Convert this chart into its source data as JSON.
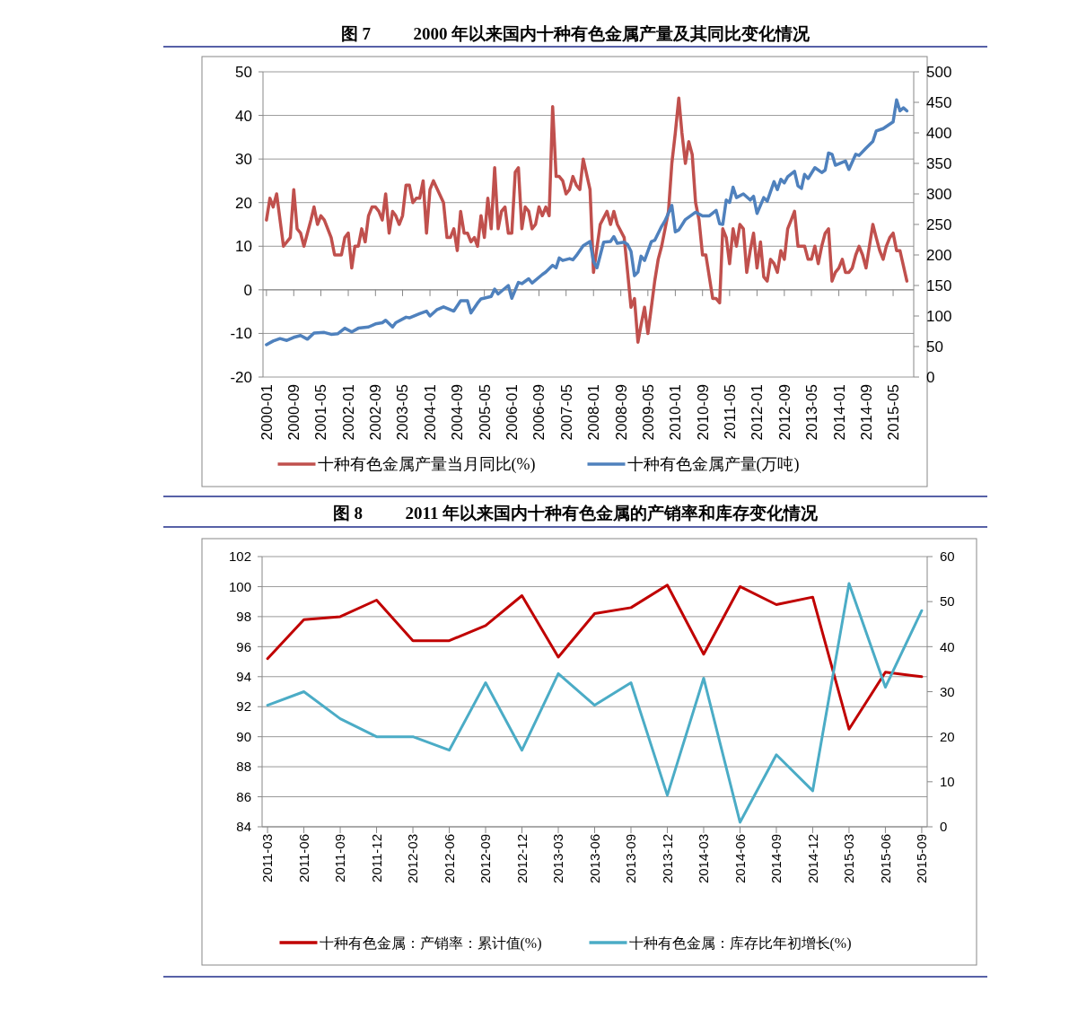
{
  "chart_data": [
    {
      "type": "line",
      "title": "图 7          2000 年以来国内十种有色金属产量及其同比变化情况",
      "xlim": [
        "1999-12",
        "2015-11"
      ],
      "xticks": [
        "2000-01",
        "2000-09",
        "2001-05",
        "2002-01",
        "2002-09",
        "2003-05",
        "2004-01",
        "2004-09",
        "2005-05",
        "2006-01",
        "2006-09",
        "2007-05",
        "2008-01",
        "2008-09",
        "2009-05",
        "2010-01",
        "2010-09",
        "2011-05",
        "2012-01",
        "2012-09",
        "2013-05",
        "2014-01",
        "2014-09",
        "2015-05"
      ],
      "ylim": [
        -20,
        50
      ],
      "yticks": [
        -20,
        -10,
        0,
        10,
        20,
        30,
        40,
        50
      ],
      "y2lim": [
        0,
        500
      ],
      "y2ticks": [
        0,
        50,
        100,
        150,
        200,
        250,
        300,
        350,
        400,
        450,
        500
      ],
      "grid": "y",
      "legend": "bottom",
      "series": [
        {
          "name": "十种有色金属产量当月同比(%)",
          "color": "#c0504d",
          "x": [
            "2000-01",
            "2000-02",
            "2000-03",
            "2000-04",
            "2000-06",
            "2000-08",
            "2000-09",
            "2000-10",
            "2000-11",
            "2000-12",
            "2001-02",
            "2001-03",
            "2001-04",
            "2001-05",
            "2001-06",
            "2001-08",
            "2001-09",
            "2001-10",
            "2001-11",
            "2001-12",
            "2002-01",
            "2002-02",
            "2002-03",
            "2002-04",
            "2002-05",
            "2002-06",
            "2002-07",
            "2002-08",
            "2002-09",
            "2002-10",
            "2002-11",
            "2002-12",
            "2003-01",
            "2003-02",
            "2003-03",
            "2003-04",
            "2003-05",
            "2003-06",
            "2003-07",
            "2003-08",
            "2003-09",
            "2003-10",
            "2003-11",
            "2003-12",
            "2004-01",
            "2004-02",
            "2004-05",
            "2004-06",
            "2004-07",
            "2004-08",
            "2004-09",
            "2004-10",
            "2004-11",
            "2004-12",
            "2005-01",
            "2005-02",
            "2005-03",
            "2005-04",
            "2005-05",
            "2005-06",
            "2005-07",
            "2005-08",
            "2005-09",
            "2005-10",
            "2005-11",
            "2005-12",
            "2006-01",
            "2006-02",
            "2006-03",
            "2006-04",
            "2006-05",
            "2006-06",
            "2006-07",
            "2006-08",
            "2006-09",
            "2006-10",
            "2006-11",
            "2006-12",
            "2007-01",
            "2007-02",
            "2007-03",
            "2007-04",
            "2007-05",
            "2007-06",
            "2007-07",
            "2007-08",
            "2007-09",
            "2007-10",
            "2007-12",
            "2008-01",
            "2008-03",
            "2008-05",
            "2008-06",
            "2008-07",
            "2008-08",
            "2008-10",
            "2008-11",
            "2008-12",
            "2009-01",
            "2009-02",
            "2009-03",
            "2009-04",
            "2009-05",
            "2009-06",
            "2009-07",
            "2009-08",
            "2009-09",
            "2009-11",
            "2009-12",
            "2010-01",
            "2010-02",
            "2010-03",
            "2010-04",
            "2010-05",
            "2010-06",
            "2010-07",
            "2010-08",
            "2010-09",
            "2010-10",
            "2010-12",
            "2011-01",
            "2011-02",
            "2011-03",
            "2011-04",
            "2011-05",
            "2011-06",
            "2011-07",
            "2011-08",
            "2011-09",
            "2011-10",
            "2011-11",
            "2011-12",
            "2012-01",
            "2012-02",
            "2012-03",
            "2012-04",
            "2012-05",
            "2012-06",
            "2012-07",
            "2012-08",
            "2012-09",
            "2012-10",
            "2012-11",
            "2012-12",
            "2013-01",
            "2013-02",
            "2013-03",
            "2013-04",
            "2013-05",
            "2013-06",
            "2013-07",
            "2013-08",
            "2013-09",
            "2013-10",
            "2013-11",
            "2013-12",
            "2014-01",
            "2014-02",
            "2014-03",
            "2014-04",
            "2014-05",
            "2014-06",
            "2014-07",
            "2014-08",
            "2014-09",
            "2014-10",
            "2014-11",
            "2014-12",
            "2015-01",
            "2015-02",
            "2015-03",
            "2015-04",
            "2015-05",
            "2015-06",
            "2015-07",
            "2015-09"
          ],
          "values": [
            16,
            21,
            19,
            22,
            10,
            12,
            23,
            14,
            13,
            10,
            16,
            19,
            15,
            17,
            16,
            12,
            8,
            8,
            8,
            12,
            13,
            5,
            10,
            10,
            14,
            11,
            17,
            19,
            19,
            18,
            16,
            22,
            13,
            18,
            17,
            15,
            17,
            24,
            24,
            20,
            21,
            21,
            25,
            13,
            23,
            25,
            20,
            12,
            12,
            14,
            9,
            18,
            13,
            13,
            11,
            12,
            10,
            17,
            12,
            21,
            14,
            28,
            14,
            18,
            19,
            13,
            13,
            27,
            28,
            14,
            19,
            18,
            14,
            15,
            19,
            17,
            19,
            17,
            42,
            26,
            26,
            25,
            22,
            23,
            26,
            24,
            23,
            30,
            23,
            4,
            15,
            18,
            15,
            18,
            15,
            12,
            4,
            -4,
            -2,
            -12,
            -8,
            -4,
            -10,
            -4,
            2,
            7,
            10,
            18,
            29,
            36,
            44,
            36,
            29,
            34,
            31,
            20,
            16,
            8,
            8,
            -2,
            -2,
            -3,
            14,
            12,
            6,
            14,
            10,
            15,
            14,
            4,
            9,
            13,
            5,
            11,
            3,
            2,
            7,
            6,
            4,
            9,
            7,
            14,
            16,
            18,
            10,
            10,
            10,
            7,
            7,
            10,
            6,
            10,
            13,
            14,
            2,
            4,
            5,
            7,
            4,
            4,
            5,
            8,
            10,
            8,
            5,
            10,
            15,
            12,
            9,
            7,
            10,
            12,
            13,
            9,
            9,
            2
          ]
        },
        {
          "name": "十种有色金属产量(万吨)",
          "color": "#4f81bd",
          "axis": "y2",
          "x": [
            "2000-01",
            "2000-03",
            "2000-05",
            "2000-07",
            "2000-09",
            "2000-11",
            "2001-01",
            "2001-03",
            "2001-06",
            "2001-08",
            "2001-10",
            "2001-12",
            "2002-02",
            "2002-04",
            "2002-07",
            "2002-09",
            "2002-11",
            "2002-12",
            "2003-02",
            "2003-03",
            "2003-06",
            "2003-07",
            "2003-10",
            "2003-12",
            "2004-01",
            "2004-03",
            "2004-05",
            "2004-08",
            "2004-10",
            "2004-12",
            "2005-01",
            "2005-03",
            "2005-04",
            "2005-07",
            "2005-08",
            "2005-09",
            "2005-12",
            "2006-01",
            "2006-03",
            "2006-04",
            "2006-06",
            "2006-07",
            "2006-10",
            "2006-11",
            "2007-01",
            "2007-02",
            "2007-03",
            "2007-04",
            "2007-06",
            "2007-07",
            "2007-08",
            "2007-10",
            "2007-12",
            "2008-01",
            "2008-02",
            "2008-04",
            "2008-06",
            "2008-07",
            "2008-08",
            "2008-10",
            "2008-11",
            "2008-12",
            "2009-01",
            "2009-02",
            "2009-03",
            "2009-04",
            "2009-06",
            "2009-07",
            "2009-09",
            "2009-10",
            "2009-12",
            "2010-01",
            "2010-02",
            "2010-04",
            "2010-07",
            "2010-09",
            "2010-11",
            "2011-01",
            "2011-02",
            "2011-03",
            "2011-04",
            "2011-05",
            "2011-06",
            "2011-07",
            "2011-09",
            "2011-11",
            "2011-12",
            "2012-01",
            "2012-03",
            "2012-04",
            "2012-06",
            "2012-07",
            "2012-08",
            "2012-09",
            "2012-10",
            "2012-12",
            "2013-01",
            "2013-02",
            "2013-03",
            "2013-04",
            "2013-06",
            "2013-08",
            "2013-09",
            "2013-10",
            "2013-11",
            "2013-12",
            "2014-03",
            "2014-04",
            "2014-06",
            "2014-07",
            "2014-09",
            "2014-11",
            "2014-12",
            "2015-02",
            "2015-05",
            "2015-06",
            "2015-07",
            "2015-08",
            "2015-09"
          ],
          "values": [
            53,
            59,
            63,
            60,
            65,
            68,
            62,
            72,
            73,
            70,
            71,
            80,
            74,
            80,
            82,
            87,
            89,
            93,
            82,
            89,
            98,
            97,
            104,
            108,
            100,
            110,
            115,
            108,
            125,
            125,
            105,
            121,
            128,
            132,
            144,
            136,
            150,
            129,
            155,
            153,
            161,
            154,
            168,
            172,
            183,
            179,
            195,
            191,
            194,
            192,
            199,
            215,
            222,
            189,
            179,
            221,
            222,
            230,
            219,
            221,
            217,
            206,
            166,
            172,
            198,
            191,
            222,
            224,
            247,
            256,
            281,
            238,
            241,
            258,
            270,
            264,
            264,
            273,
            251,
            250,
            290,
            286,
            311,
            294,
            300,
            290,
            296,
            268,
            294,
            288,
            320,
            307,
            324,
            318,
            328,
            337,
            313,
            309,
            332,
            325,
            343,
            335,
            339,
            367,
            365,
            347,
            354,
            340,
            365,
            363,
            375,
            386,
            403,
            407,
            418,
            454,
            436,
            441,
            436
          ]
        }
      ]
    },
    {
      "type": "line",
      "title": "图 8          2011 年以来国内十种有色金属的产销率和库存变化情况",
      "categories": [
        "2011-03",
        "2011-06",
        "2011-09",
        "2011-12",
        "2012-03",
        "2012-06",
        "2012-09",
        "2012-12",
        "2013-03",
        "2013-06",
        "2013-09",
        "2013-12",
        "2014-03",
        "2014-06",
        "2014-09",
        "2014-12",
        "2015-03",
        "2015-06",
        "2015-09"
      ],
      "ylim": [
        84,
        102
      ],
      "yticks": [
        84,
        86,
        88,
        90,
        92,
        94,
        96,
        98,
        100,
        102
      ],
      "y2lim": [
        0,
        60
      ],
      "y2ticks": [
        0,
        10,
        20,
        30,
        40,
        50,
        60
      ],
      "grid": "y",
      "legend": "bottom",
      "series": [
        {
          "name": "十种有色金属：产销率：累计值(%)",
          "color": "#c00000",
          "values": [
            95.2,
            97.8,
            98.0,
            99.1,
            96.4,
            96.4,
            97.4,
            99.4,
            95.3,
            98.2,
            98.6,
            100.1,
            95.5,
            100.0,
            98.8,
            99.3,
            90.5,
            94.3,
            94.0
          ]
        },
        {
          "name": "十种有色金属：库存比年初增长(%)",
          "color": "#4bacc6",
          "axis": "y2",
          "values": [
            27,
            30,
            24,
            20,
            20,
            17,
            32,
            17,
            34,
            27,
            32,
            7,
            33,
            1,
            16,
            8,
            54,
            31,
            48
          ]
        }
      ]
    }
  ]
}
